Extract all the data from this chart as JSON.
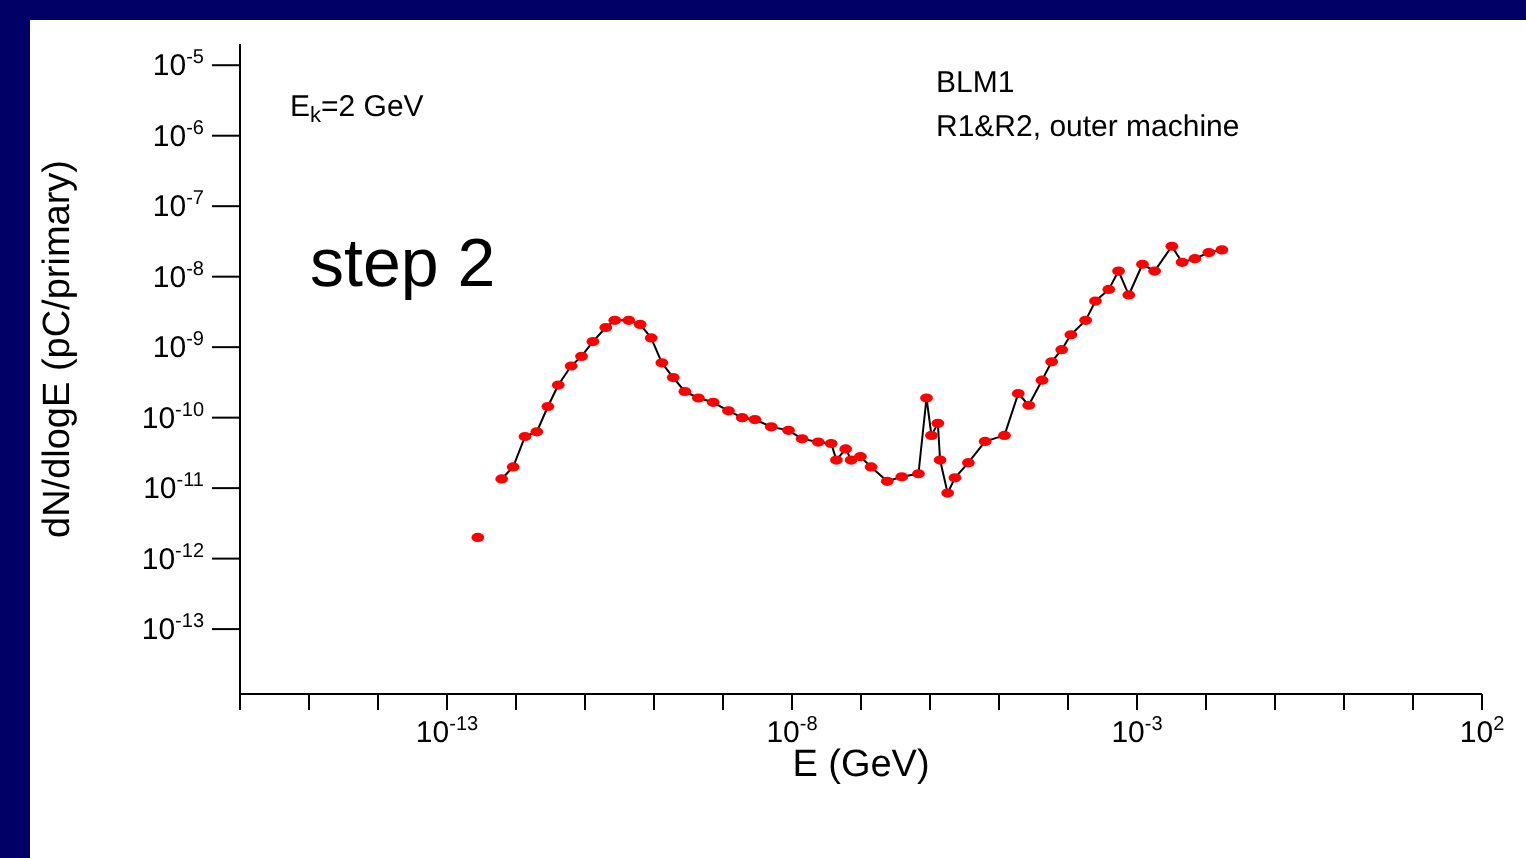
{
  "chart_data": {
    "type": "line",
    "xlabel": "E (GeV)",
    "ylabel": "dN/dlogE (pC/primary)",
    "log": "xy",
    "marker": "circle",
    "grid": false,
    "legend": false,
    "xlim": [
      1e-16,
      100
    ],
    "xticks": [
      {
        "value": 1e-16,
        "label": null
      },
      {
        "value": 1e-15,
        "label": null
      },
      {
        "value": 1e-14,
        "label": null
      },
      {
        "value": 1e-13,
        "label": "10$^{-13}$"
      },
      {
        "value": 1e-12,
        "label": null
      },
      {
        "value": 1e-11,
        "label": null
      },
      {
        "value": 1e-10,
        "label": null
      },
      {
        "value": 1e-09,
        "label": null
      },
      {
        "value": 1e-08,
        "label": "10$^{-8}$"
      },
      {
        "value": 1e-07,
        "label": null
      },
      {
        "value": 1e-06,
        "label": null
      },
      {
        "value": 1e-05,
        "label": null
      },
      {
        "value": 0.0001,
        "label": null
      },
      {
        "value": 0.001,
        "label": "10$^{-3}$"
      },
      {
        "value": 0.01,
        "label": null
      },
      {
        "value": 0.1,
        "label": null
      },
      {
        "value": 1,
        "label": null
      },
      {
        "value": 10,
        "label": null
      },
      {
        "value": 100,
        "label": "10$^{2}$"
      }
    ],
    "ylim": [
      1.2e-14,
      2e-05
    ],
    "yticks": [
      {
        "value": 1e-13,
        "label": "10$^{-13}$"
      },
      {
        "value": 1e-12,
        "label": "10$^{-12}$"
      },
      {
        "value": 1e-11,
        "label": "10$^{-11}$"
      },
      {
        "value": 1e-10,
        "label": "10$^{-10}$"
      },
      {
        "value": 1e-09,
        "label": "10$^{-9}$"
      },
      {
        "value": 1e-08,
        "label": "10$^{-8}$"
      },
      {
        "value": 1e-07,
        "label": "10$^{-7}$"
      },
      {
        "value": 1e-06,
        "label": "10$^{-6}$"
      },
      {
        "value": 1e-05,
        "label": "10$^{-5}$"
      }
    ],
    "annotations": [
      "E$_{k}$=2 GeV",
      "BLM1",
      "R1&R2, outer machine",
      "step 2"
    ],
    "series": [
      {
        "color": "#ff0000",
        "x": [
          2.8e-13,
          4.5e-13,
          6.2e-13,
          9.1e-13,
          1.35e-12,
          2e-12,
          2.9e-12,
          4.1e-12,
          6.3e-12,
          8.9e-12,
          1.3e-11,
          2e-11,
          2.7e-11,
          4.3e-11,
          6.3e-11,
          9.1e-11,
          1.3e-10,
          1.9e-10,
          2.8e-10,
          4.4e-10,
          7.2e-10,
          1.2e-09,
          1.9e-09,
          2.9e-09,
          5e-09,
          8.9e-09,
          1.4e-08,
          2.4e-08,
          3.7e-08,
          4.4e-08,
          6e-08,
          7.2e-08,
          9.8e-08,
          1.4e-07,
          2.4e-07,
          3.9e-07,
          6.8e-07,
          8.9e-07,
          1.05e-06,
          1.3e-06,
          1.4e-06,
          1.8e-06,
          2.3e-06,
          3.6e-06,
          6.3e-06,
          1.2e-05,
          1.9e-05,
          2.7e-05,
          4.2e-05,
          5.8e-05,
          8.1e-05,
          0.00011,
          0.00018,
          0.00025,
          0.00039,
          0.00054,
          0.00076,
          0.0012,
          0.0018,
          0.0032,
          0.0045,
          0.0069,
          0.011,
          0.017
        ],
        "values": [
          2e-12,
          null,
          1.35e-11,
          2e-11,
          5.4e-11,
          6.3e-11,
          1.44e-10,
          2.9e-10,
          5.4e-10,
          7.4e-10,
          1.2e-09,
          1.9e-09,
          2.4e-09,
          2.4e-09,
          2.1e-09,
          1.35e-09,
          6e-10,
          3.7e-10,
          2.35e-10,
          1.9e-10,
          1.65e-10,
          1.25e-10,
          1e-10,
          9.4e-11,
          7.4e-11,
          6.6e-11,
          5e-11,
          4.5e-11,
          4.3e-11,
          2.5e-11,
          3.6e-11,
          2.5e-11,
          2.8e-11,
          2e-11,
          1.25e-11,
          1.45e-11,
          1.6e-11,
          1.9e-10,
          5.6e-11,
          8.3e-11,
          2.5e-11,
          8.5e-12,
          1.4e-11,
          2.3e-11,
          4.6e-11,
          5.6e-11,
          2.2e-10,
          1.5e-10,
          3.4e-10,
          6.2e-10,
          9.2e-10,
          1.5e-09,
          2.4e-09,
          4.5e-09,
          6.6e-09,
          1.2e-08,
          5.5e-09,
          1.5e-08,
          1.2e-08,
          2.7e-08,
          1.6e-08,
          1.8e-08,
          2.2e-08,
          2.4e-08
        ]
      }
    ]
  }
}
